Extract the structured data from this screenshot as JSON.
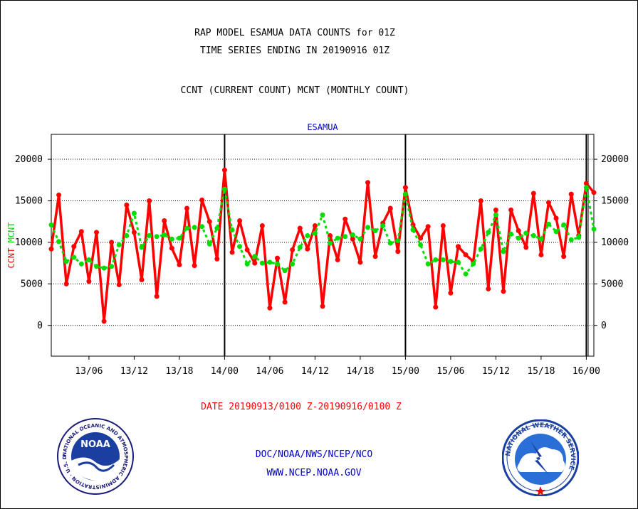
{
  "header": {
    "title_line1": "RAP MODEL ESAMUA DATA COUNTS for 01Z",
    "title_line2": "TIME SERIES ENDING IN 20190916 01Z",
    "subtitle": "CCNT (CURRENT COUNT) MCNT (MONTHLY COUNT)"
  },
  "footer": {
    "date_range": "DATE 20190913/0100 Z-20190916/0100 Z",
    "org_line": "DOC/NOAA/NWS/NCEP/NCO",
    "url_line": "WWW.NCEP.NOAA.GOV"
  },
  "logos": {
    "noaa": {
      "text": "NOAA",
      "ring_text": "NATIONAL OCEANIC AND ATMOSPHERIC ADMINISTRATION · U.S. DEPARTMENT OF COMMERCE ·"
    },
    "nws": {
      "ring_text": "NATIONAL WEATHER SERVICE"
    }
  },
  "colors": {
    "ccnt": "#ff0000",
    "mcnt": "#00dd00",
    "axis": "#000000",
    "station_label": "#0000cc",
    "footer_blue": "#0000cc"
  },
  "chart_data": {
    "type": "line",
    "title": "ESAMUA",
    "ylabel_left": [
      "CCNT",
      "MCNT"
    ],
    "yticks": [
      0,
      5000,
      10000,
      15000,
      20000
    ],
    "ylim": [
      -3700,
      23000
    ],
    "x_tick_labels": [
      "13/06",
      "13/12",
      "13/18",
      "14/00",
      "14/06",
      "14/12",
      "14/18",
      "15/00",
      "15/06",
      "15/12",
      "15/18",
      "16/00"
    ],
    "x_tick_hours": [
      5,
      11,
      17,
      23,
      29,
      35,
      41,
      47,
      53,
      59,
      65,
      71
    ],
    "day_boundaries_hours": [
      23,
      47,
      71
    ],
    "xlim_hours": [
      0,
      72
    ],
    "grid": true,
    "series": [
      {
        "name": "CCNT",
        "color": "#ff0000",
        "values": [
          9200,
          15700,
          5000,
          9500,
          11300,
          5300,
          11200,
          500,
          10000,
          4900,
          14500,
          11200,
          5500,
          15000,
          3500,
          12600,
          9300,
          7300,
          14100,
          7200,
          15100,
          12500,
          8000,
          18700,
          8800,
          12600,
          9100,
          7500,
          12000,
          2100,
          8100,
          2800,
          9100,
          11700,
          9200,
          12000,
          2300,
          10800,
          7900,
          12800,
          10400,
          7600,
          17200,
          8300,
          12300,
          14100,
          8900,
          16600,
          12100,
          10500,
          11900,
          2200,
          12000,
          3900,
          9500,
          8500,
          7700,
          15000,
          4400,
          13900,
          4100,
          13900,
          11400,
          9400,
          15900,
          8500,
          14800,
          12900,
          8300,
          15800,
          10800,
          17100,
          16000
        ]
      },
      {
        "name": "MCNT",
        "color": "#00dd00",
        "values": [
          12100,
          10100,
          7700,
          8200,
          7400,
          7900,
          7100,
          6900,
          7100,
          9700,
          10800,
          13500,
          9400,
          10800,
          10700,
          10900,
          10400,
          10500,
          11700,
          11800,
          11900,
          9800,
          11700,
          16400,
          11500,
          9500,
          7400,
          8300,
          7500,
          7600,
          7400,
          6600,
          7400,
          9400,
          10800,
          11100,
          13300,
          9900,
          10500,
          10700,
          10900,
          10400,
          11800,
          11400,
          12000,
          9900,
          10200,
          15800,
          11500,
          9700,
          7400,
          7900,
          7900,
          7700,
          7600,
          6200,
          7400,
          9200,
          11200,
          13300,
          8900,
          11000,
          10500,
          11100,
          10800,
          10400,
          12200,
          11300,
          12100,
          10300,
          10600,
          16600,
          11600
        ]
      }
    ]
  }
}
